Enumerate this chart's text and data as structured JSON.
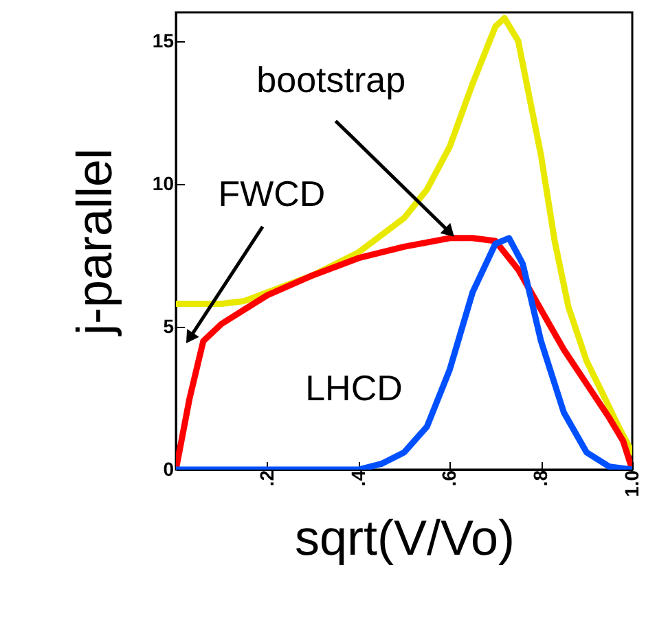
{
  "chart_data": {
    "type": "line",
    "xlabel": "sqrt(V/Vo)",
    "ylabel": "j-parallel",
    "xlim": [
      0,
      1.0
    ],
    "ylim": [
      0,
      16
    ],
    "xticks": [
      {
        "value": 0.2,
        "label": ".2"
      },
      {
        "value": 0.4,
        "label": ".4"
      },
      {
        "value": 0.6,
        "label": ".6"
      },
      {
        "value": 0.8,
        "label": ".8"
      },
      {
        "value": 1.0,
        "label": "1.0"
      }
    ],
    "yticks": [
      0,
      5,
      10,
      15
    ],
    "grid": false,
    "marker": "none",
    "line_style": "solid",
    "series": [
      {
        "name": "bootstrap",
        "color": "#e8e800",
        "x": [
          0,
          0.05,
          0.1,
          0.15,
          0.2,
          0.3,
          0.4,
          0.5,
          0.55,
          0.6,
          0.65,
          0.7,
          0.72,
          0.75,
          0.8,
          0.83,
          0.86,
          0.9,
          0.94,
          0.97,
          1.0
        ],
        "values": [
          5.8,
          5.8,
          5.8,
          5.9,
          6.2,
          6.8,
          7.6,
          8.8,
          9.8,
          11.3,
          13.5,
          15.5,
          15.8,
          15.0,
          11.0,
          8.0,
          5.7,
          3.8,
          2.5,
          1.5,
          0.6
        ]
      },
      {
        "name": "FWCD",
        "color": "#ff0000",
        "x": [
          0,
          0.03,
          0.06,
          0.1,
          0.15,
          0.2,
          0.3,
          0.4,
          0.5,
          0.6,
          0.65,
          0.7,
          0.75,
          0.8,
          0.85,
          0.9,
          0.95,
          0.98,
          1.0
        ],
        "values": [
          0,
          2.5,
          4.5,
          5.1,
          5.6,
          6.1,
          6.8,
          7.4,
          7.8,
          8.1,
          8.1,
          8.0,
          7.0,
          5.6,
          4.2,
          3.0,
          1.8,
          1.0,
          0
        ]
      },
      {
        "name": "LHCD",
        "color": "#0050ff",
        "x": [
          0,
          0.4,
          0.45,
          0.5,
          0.55,
          0.6,
          0.65,
          0.7,
          0.73,
          0.76,
          0.8,
          0.85,
          0.9,
          0.95,
          1.0
        ],
        "values": [
          0,
          0,
          0.2,
          0.6,
          1.5,
          3.5,
          6.2,
          7.9,
          8.1,
          7.2,
          4.5,
          2.0,
          0.6,
          0.1,
          0
        ]
      }
    ]
  }
}
